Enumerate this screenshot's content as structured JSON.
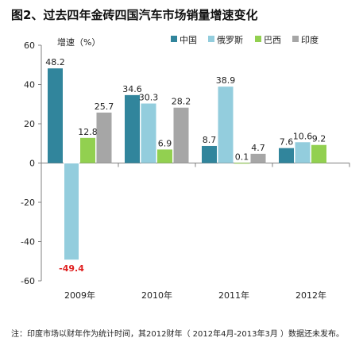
{
  "title": "图2、过去四年金砖四国汽车市场销量增速变化",
  "footnote": "注：印度市场以财年作为统计时间，其2012财年（ 2012年4月-2013年3月 ）数据还未发布。",
  "chart_data": {
    "type": "bar",
    "title": "图2、过去四年金砖四国汽车市场销量增速变化",
    "ylabel": "增速（%）",
    "xlabel": "",
    "categories": [
      "2009年",
      "2010年",
      "2011年",
      "2012年"
    ],
    "ylim": [
      -60,
      60
    ],
    "yticks": [
      60,
      40,
      20,
      0,
      -20,
      -40,
      -60
    ],
    "grid": false,
    "legend_position": "top-right",
    "series": [
      {
        "name": "中国",
        "color": "#31859c",
        "values": [
          48.2,
          34.6,
          8.7,
          7.6
        ],
        "labels": [
          "48.2",
          "34.6",
          "8.7",
          "7.6"
        ]
      },
      {
        "name": "俄罗斯",
        "color": "#93cddd",
        "values": [
          -49.4,
          30.3,
          38.9,
          10.6
        ],
        "labels": [
          "-49.4",
          "30.3",
          "38.9",
          "10.6"
        ]
      },
      {
        "name": "巴西",
        "color": "#92d050",
        "values": [
          12.8,
          6.9,
          0.1,
          9.2
        ],
        "labels": [
          "12.8",
          "6.9",
          "0.1",
          "9.2"
        ]
      },
      {
        "name": "印度",
        "color": "#a6a6a6",
        "values": [
          25.7,
          28.2,
          4.7,
          null
        ],
        "labels": [
          "25.7",
          "28.2",
          "4.7",
          ""
        ]
      }
    ],
    "highlight_label_color": "#e02020"
  }
}
